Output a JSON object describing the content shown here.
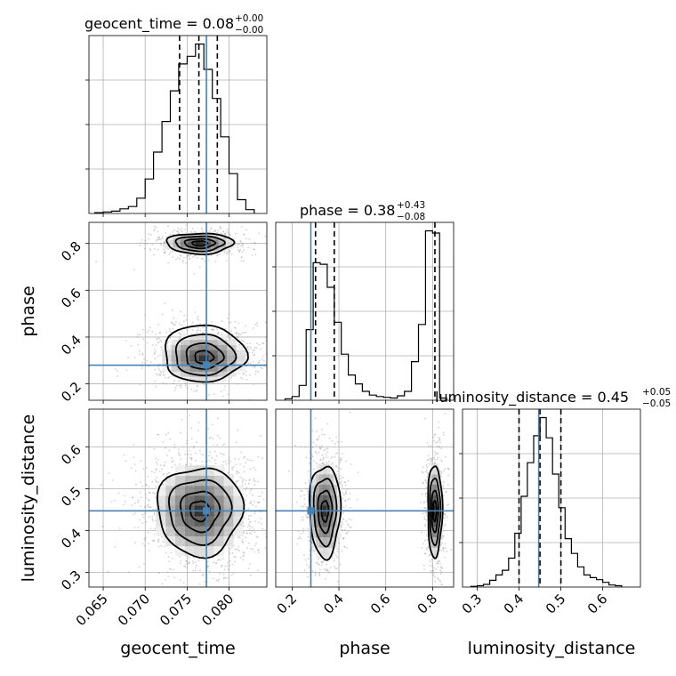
{
  "chart_data": {
    "type": "corner",
    "parameters": [
      "geocent_time",
      "phase",
      "luminosity_distance"
    ],
    "truths": {
      "geocent_time": 0.0773,
      "phase": 0.28,
      "luminosity_distance": 0.447
    },
    "colors": {
      "truth": "#4682b4",
      "hist": "#000000",
      "grid": "#b0b0b0",
      "points": "#9a9a9a"
    },
    "grid": true,
    "titles": [
      {
        "param": "geocent_time",
        "label": "geocent_time = 0.08",
        "sup": "+0.00",
        "sub": "−0.00"
      },
      {
        "param": "phase",
        "label": "phase = 0.38",
        "sup": "+0.43",
        "sub": "−0.08"
      },
      {
        "param": "luminosity_distance",
        "label": "luminosity_distance = 0.45",
        "sup": "+0.05",
        "sub": "−0.05"
      }
    ],
    "axes": {
      "geocent_time": {
        "range": [
          0.0633,
          0.0845
        ],
        "ticks": [
          0.065,
          0.07,
          0.075,
          0.08
        ],
        "tick_labels": [
          "0.065",
          "0.070",
          "0.075",
          "0.080"
        ]
      },
      "phase": {
        "range": [
          0.13,
          0.89
        ],
        "ticks": [
          0.2,
          0.4,
          0.6,
          0.8
        ],
        "tick_labels": [
          "0.2",
          "0.4",
          "0.6",
          "0.8"
        ]
      },
      "luminosity_distance": {
        "range": [
          0.265,
          0.69
        ],
        "ticks": [
          0.3,
          0.4,
          0.5,
          0.6
        ],
        "tick_labels": [
          "0.3",
          "0.4",
          "0.5",
          "0.6"
        ]
      }
    },
    "quantiles": {
      "geocent_time": [
        0.0741,
        0.0764,
        0.0786
      ],
      "phase": [
        0.3,
        0.38,
        0.81
      ],
      "luminosity_distance": [
        0.4,
        0.45,
        0.5
      ]
    },
    "histograms": {
      "geocent_time": {
        "edges": [
          0.064,
          0.065,
          0.066,
          0.067,
          0.068,
          0.069,
          0.07,
          0.071,
          0.072,
          0.073,
          0.074,
          0.075,
          0.076,
          0.077,
          0.078,
          0.079,
          0.08,
          0.081,
          0.082,
          0.083
        ],
        "counts": [
          1,
          2,
          3,
          6,
          9,
          20,
          45,
          80,
          120,
          160,
          195,
          205,
          221,
          188,
          150,
          100,
          52,
          18,
          5
        ]
      },
      "phase": {
        "edges": [
          0.17,
          0.2,
          0.23,
          0.26,
          0.29,
          0.32,
          0.35,
          0.38,
          0.41,
          0.44,
          0.47,
          0.5,
          0.53,
          0.56,
          0.59,
          0.62,
          0.65,
          0.68,
          0.71,
          0.74,
          0.77,
          0.8,
          0.83,
          0.86
        ],
        "counts": [
          2,
          5,
          20,
          95,
          185,
          183,
          152,
          105,
          62,
          34,
          22,
          12,
          7,
          5,
          4,
          3,
          6,
          12,
          52,
          102,
          228,
          225,
          3
        ]
      },
      "luminosity_distance": {
        "edges": [
          0.285,
          0.3,
          0.315,
          0.33,
          0.345,
          0.36,
          0.375,
          0.39,
          0.405,
          0.42,
          0.435,
          0.45,
          0.465,
          0.48,
          0.495,
          0.51,
          0.525,
          0.54,
          0.555,
          0.57,
          0.585,
          0.6,
          0.615,
          0.63,
          0.645
        ],
        "counts": [
          1,
          2,
          4,
          10,
          18,
          25,
          43,
          80,
          135,
          185,
          225,
          252,
          222,
          168,
          118,
          72,
          50,
          30,
          18,
          14,
          11,
          7,
          3,
          2
        ]
      }
    },
    "density_blobs": [
      {
        "x": "geocent_time",
        "y": "phase",
        "cx": 0.0765,
        "cy": 0.8,
        "sx": 0.0018,
        "sy": 0.02,
        "w": 0.45
      },
      {
        "x": "geocent_time",
        "y": "phase",
        "cx": 0.077,
        "cy": 0.31,
        "sx": 0.0022,
        "sy": 0.045,
        "w": 0.55
      },
      {
        "x": "geocent_time",
        "y": "luminosity_distance",
        "cx": 0.0765,
        "cy": 0.447,
        "sx": 0.0023,
        "sy": 0.048,
        "w": 1.0
      },
      {
        "x": "phase",
        "y": "luminosity_distance",
        "cx": 0.34,
        "cy": 0.447,
        "sx": 0.03,
        "sy": 0.05,
        "w": 0.55
      },
      {
        "x": "phase",
        "y": "luminosity_distance",
        "cx": 0.81,
        "cy": 0.447,
        "sx": 0.014,
        "sy": 0.05,
        "w": 0.45
      }
    ]
  }
}
